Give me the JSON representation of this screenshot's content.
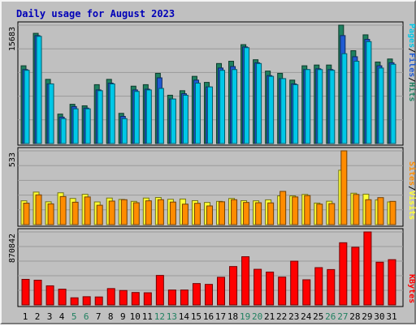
{
  "title": "Daily usage for August 2023",
  "colors": {
    "hits": "#1e8060",
    "files": "#1e5ad2",
    "pages": "#00c8e8",
    "visits": "#ffff33",
    "sites": "#ff8c00",
    "kbytes": "#ff0000",
    "weekend_day": "#208060",
    "weekday": "#000000",
    "title": "#0000b8"
  },
  "chart_data": [
    {
      "type": "bar",
      "panel": "hits-files-pages",
      "categories": [
        "1",
        "2",
        "3",
        "4",
        "5",
        "6",
        "7",
        "8",
        "9",
        "10",
        "11",
        "12",
        "13",
        "14",
        "15",
        "16",
        "17",
        "18",
        "19",
        "20",
        "21",
        "22",
        "23",
        "24",
        "25",
        "26",
        "27",
        "28",
        "29",
        "30",
        "31"
      ],
      "weekend_days": [
        "5",
        "6",
        "12",
        "13",
        "19",
        "20",
        "26",
        "27"
      ],
      "y_max_label": "15683",
      "ylim": [
        0,
        15683
      ],
      "legend": [
        "Pages",
        "Files",
        "Hits"
      ],
      "legend_separator": "/",
      "series": [
        {
          "name": "Hits",
          "values": [
            10300,
            14600,
            8500,
            3900,
            5200,
            5000,
            7800,
            8500,
            4000,
            7600,
            7800,
            9300,
            6400,
            7000,
            8900,
            8100,
            10600,
            10900,
            13100,
            11100,
            9600,
            9300,
            8400,
            10300,
            10400,
            10400,
            15683,
            12300,
            14400,
            10800,
            11200
          ]
        },
        {
          "name": "Files",
          "values": [
            9800,
            14300,
            7900,
            3500,
            4900,
            4700,
            7100,
            8000,
            3600,
            7100,
            7200,
            8700,
            5900,
            6600,
            8400,
            7500,
            10000,
            10200,
            12800,
            10700,
            9000,
            8600,
            7900,
            9800,
            9900,
            9800,
            14300,
            11500,
            13800,
            10300,
            10700
          ]
        },
        {
          "name": "Pages",
          "values": [
            9700,
            14200,
            7900,
            3300,
            4600,
            4600,
            7000,
            7900,
            3300,
            6900,
            7100,
            7300,
            5900,
            6400,
            8000,
            7500,
            9700,
            9800,
            12700,
            10600,
            8900,
            8600,
            7800,
            9800,
            9800,
            9700,
            11900,
            10900,
            13500,
            10000,
            10500
          ]
        }
      ]
    },
    {
      "type": "bar",
      "panel": "visits-sites",
      "categories": [
        "1",
        "2",
        "3",
        "4",
        "5",
        "6",
        "7",
        "8",
        "9",
        "10",
        "11",
        "12",
        "13",
        "14",
        "15",
        "16",
        "17",
        "18",
        "19",
        "20",
        "21",
        "22",
        "23",
        "24",
        "25",
        "26",
        "27",
        "28",
        "29",
        "30",
        "31"
      ],
      "y_max_label": "533",
      "ylim": [
        0,
        533
      ],
      "legend": [
        "Sites",
        "Visits"
      ],
      "legend_separator": "/",
      "series": [
        {
          "name": "Visits",
          "values": [
            172,
            235,
            165,
            230,
            189,
            219,
            164,
            192,
            182,
            168,
            192,
            196,
            183,
            185,
            173,
            160,
            168,
            189,
            173,
            172,
            179,
            208,
            208,
            218,
            156,
            169,
            393,
            227,
            220,
            178,
            164
          ]
        },
        {
          "name": "Sites",
          "values": [
            155,
            215,
            150,
            203,
            162,
            200,
            140,
            170,
            180,
            158,
            172,
            180,
            163,
            148,
            154,
            135,
            165,
            180,
            160,
            158,
            157,
            240,
            200,
            210,
            148,
            152,
            533,
            218,
            180,
            195,
            168
          ]
        }
      ]
    },
    {
      "type": "bar",
      "panel": "kbytes",
      "categories": [
        "1",
        "2",
        "3",
        "4",
        "5",
        "6",
        "7",
        "8",
        "9",
        "10",
        "11",
        "12",
        "13",
        "14",
        "15",
        "16",
        "17",
        "18",
        "19",
        "20",
        "21",
        "22",
        "23",
        "24",
        "25",
        "26",
        "27",
        "28",
        "29",
        "30",
        "31"
      ],
      "y_max_label": "870842",
      "ylim": [
        0,
        870842
      ],
      "legend": [
        "KBytes"
      ],
      "series": [
        {
          "name": "KBytes",
          "values": [
            305000,
            295000,
            228000,
            188000,
            85000,
            98000,
            95000,
            195000,
            172000,
            148000,
            145000,
            352000,
            178000,
            178000,
            255000,
            245000,
            330000,
            458000,
            575000,
            425000,
            392000,
            332000,
            522000,
            300000,
            445000,
            422000,
            742000,
            688000,
            870842,
            510000,
            540000
          ]
        }
      ]
    }
  ]
}
